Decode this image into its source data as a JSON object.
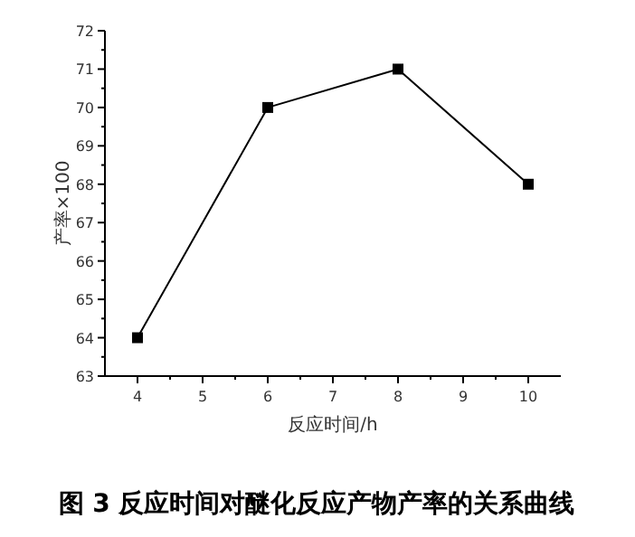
{
  "chart_data": {
    "type": "line",
    "xlabel": "反应时间/h",
    "ylabel": "产率×100",
    "annotations": [
      "图 3 反应时间对醚化反应产物产率的关系曲线"
    ],
    "x": [
      4,
      6,
      8,
      10
    ],
    "series": [
      {
        "color": "#000000",
        "values": [
          64,
          70,
          71,
          68
        ]
      }
    ],
    "xlim": [
      3.5,
      10.5
    ],
    "ylim": [
      63,
      72
    ],
    "xticks": [
      4,
      5,
      6,
      7,
      8,
      9,
      10
    ],
    "yticks": [
      63,
      64,
      65,
      66,
      67,
      68,
      69,
      70,
      71,
      72
    ],
    "marker": "square",
    "line_style": "solid",
    "grid": false
  }
}
